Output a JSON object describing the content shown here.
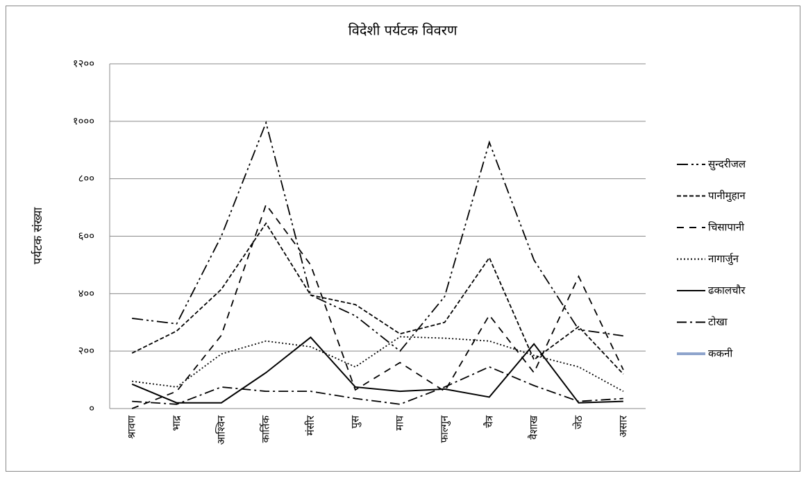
{
  "chart_data": {
    "type": "line",
    "title": "विदेशी पर्यटक विवरण",
    "y_label": "पर्यटक संख्या",
    "categories": [
      "श्रावण",
      "भाद्र",
      "आश्विन",
      "कार्तिक",
      "मंसीर",
      "पुस",
      "माघ",
      "फाल्गुन",
      "चैत्र",
      "वैशाख",
      "जेठ",
      "असार"
    ],
    "series": [
      {
        "name": "सुन्दरीजल",
        "color": "#000000",
        "style": "dash-dot-dot",
        "values": [
          314,
          295,
          600,
          995,
          395,
          323,
          200,
          390,
          927,
          517,
          275,
          253
        ]
      },
      {
        "name": "पानीमुहान",
        "color": "#000000",
        "style": "short-dash",
        "values": [
          193,
          270,
          415,
          645,
          395,
          362,
          260,
          300,
          525,
          170,
          285,
          120
        ]
      },
      {
        "name": "चिसापानी",
        "color": "#000000",
        "style": "dash",
        "values": [
          0,
          60,
          255,
          710,
          500,
          65,
          160,
          60,
          325,
          125,
          460,
          135
        ]
      },
      {
        "name": "नागार्जुन",
        "color": "#000000",
        "style": "dot",
        "values": [
          95,
          75,
          190,
          235,
          215,
          145,
          250,
          245,
          235,
          185,
          145,
          60
        ]
      },
      {
        "name": "ढकालचौर",
        "color": "#000000",
        "style": "solid",
        "values": [
          85,
          20,
          20,
          125,
          248,
          75,
          60,
          68,
          40,
          225,
          20,
          25
        ]
      },
      {
        "name": "टोखा",
        "color": "#000000",
        "style": "dash-dot",
        "values": [
          25,
          15,
          75,
          60,
          60,
          35,
          15,
          75,
          145,
          80,
          25,
          35
        ]
      },
      {
        "name": "ककनी",
        "color": "#8ea4cc",
        "style": "solid",
        "values": [
          null,
          null,
          null,
          null,
          null,
          null,
          null,
          null,
          null,
          null,
          null,
          null
        ]
      }
    ],
    "ylim": [
      0,
      1200
    ],
    "yticks": [
      {
        "value": 0,
        "label": "०"
      },
      {
        "value": 200,
        "label": "२००"
      },
      {
        "value": 400,
        "label": "४००"
      },
      {
        "value": 600,
        "label": "६००"
      },
      {
        "value": 800,
        "label": "८००"
      },
      {
        "value": 1000,
        "label": "१०००"
      },
      {
        "value": 1200,
        "label": "१२००"
      }
    ],
    "grid": true,
    "legend": "right"
  }
}
